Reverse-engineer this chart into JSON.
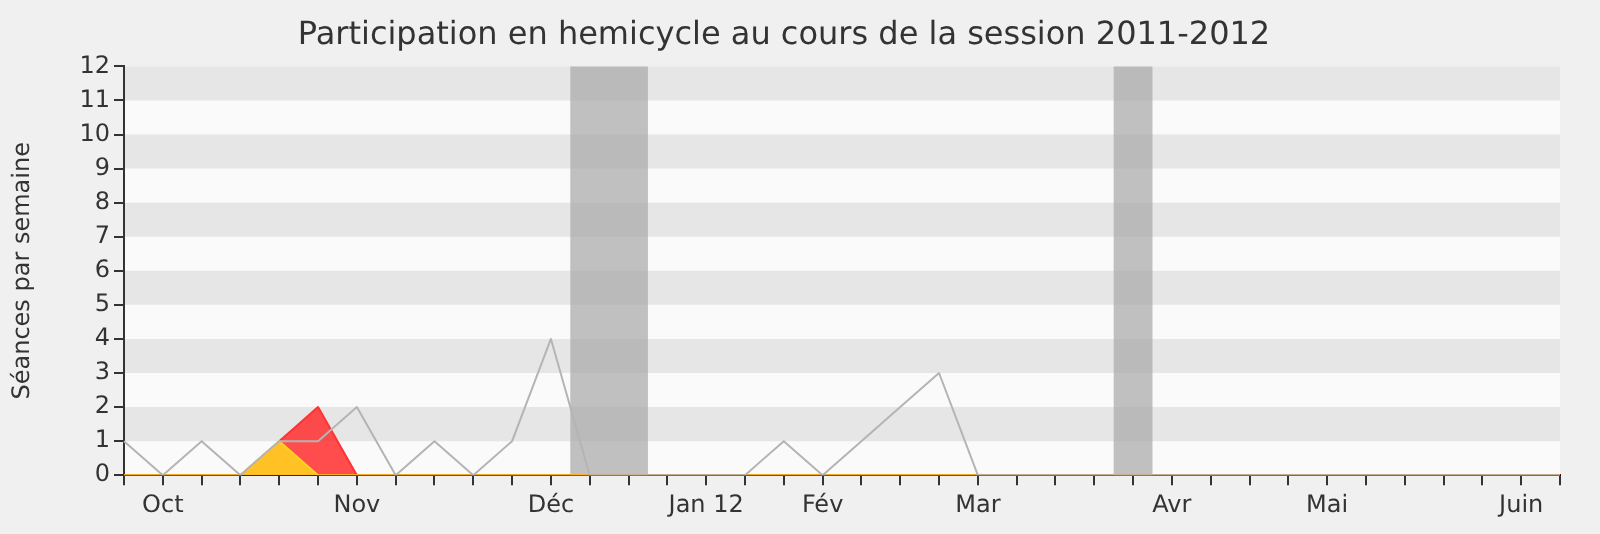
{
  "chart_data": {
    "type": "area",
    "title": "Participation en hemicycle au cours de la session 2011-2012",
    "ylabel": "Séances par semaine",
    "categories": [
      null,
      "Oct",
      null,
      null,
      null,
      null,
      "Nov",
      null,
      null,
      null,
      null,
      "Déc",
      null,
      null,
      null,
      "Jan 12",
      null,
      null,
      "Fév",
      null,
      null,
      null,
      "Mar",
      null,
      null,
      null,
      null,
      "Avr",
      null,
      null,
      null,
      "Mai",
      null,
      null,
      null,
      null,
      "Juin",
      null
    ],
    "series": [
      {
        "type": "line",
        "color": "#b4b4b4",
        "values": [
          1,
          0,
          1,
          0,
          1,
          1,
          2,
          0,
          1,
          0,
          1,
          4,
          0,
          0,
          0,
          0,
          0,
          1,
          0,
          1,
          2,
          3,
          0,
          0,
          0,
          0,
          0,
          0,
          0,
          0,
          0,
          0,
          0,
          0,
          0,
          0,
          0,
          0
        ]
      },
      {
        "color": "#ff3333",
        "values": [
          0,
          0,
          0,
          0,
          1,
          2,
          0,
          0,
          0,
          0,
          0,
          0,
          0,
          0,
          0,
          0,
          0,
          0,
          0,
          0,
          0,
          0,
          0,
          0,
          0,
          0,
          0,
          0,
          0,
          0,
          0,
          0,
          0,
          0,
          0,
          0,
          0,
          0
        ]
      },
      {
        "color": "#ffd21f",
        "values": [
          0,
          0,
          0,
          0,
          1,
          0,
          0,
          0,
          0,
          0,
          0,
          0,
          0,
          0,
          0,
          0,
          0,
          0,
          0,
          0,
          0,
          0,
          0,
          0,
          0,
          0,
          0,
          0,
          0,
          0,
          0,
          0,
          0,
          0,
          0,
          0,
          0,
          0
        ]
      }
    ],
    "ylim": [
      0,
      12
    ],
    "yticks": [
      0,
      1,
      2,
      3,
      4,
      5,
      6,
      7,
      8,
      9,
      10,
      11,
      12
    ],
    "legend": false,
    "marker": "none"
  }
}
